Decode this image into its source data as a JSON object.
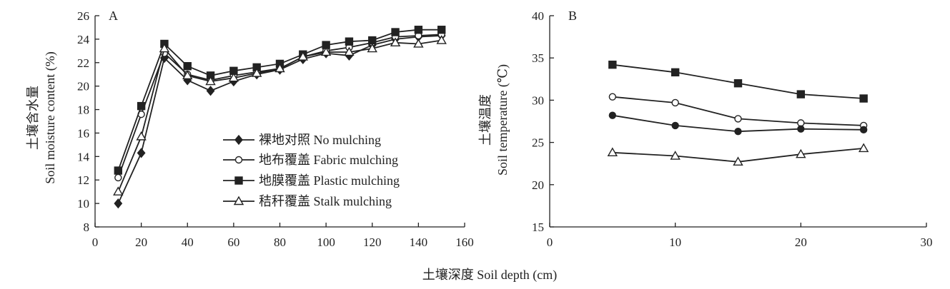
{
  "figure": {
    "shared_xlabel": "土壤深度 Soil depth (cm)"
  },
  "chart_data": [
    {
      "type": "line",
      "panel_label": "A",
      "ylabel_cn": "土壤含水量",
      "ylabel_en": "Soil moisture content (%)",
      "xlim": [
        0,
        160
      ],
      "ylim": [
        8,
        26
      ],
      "xticks": [
        0,
        20,
        40,
        60,
        80,
        100,
        120,
        140,
        160
      ],
      "yticks": [
        8,
        10,
        12,
        14,
        16,
        18,
        20,
        22,
        24,
        26
      ],
      "grid": false,
      "legend_position": "bottom-right",
      "x": [
        10,
        20,
        30,
        40,
        50,
        60,
        70,
        80,
        90,
        100,
        110,
        120,
        130,
        140,
        150
      ],
      "series": [
        {
          "name": "裸地对照 No mulching",
          "marker": "diamond-filled",
          "values": [
            10.0,
            14.3,
            22.4,
            20.5,
            19.6,
            20.4,
            21.0,
            21.4,
            22.3,
            22.8,
            22.6,
            23.5,
            24.0,
            24.2,
            24.3
          ]
        },
        {
          "name": "地布覆盖 Fabric mulching",
          "marker": "circle-open",
          "values": [
            12.2,
            17.6,
            22.8,
            21.0,
            20.5,
            20.9,
            21.2,
            21.5,
            22.5,
            23.0,
            23.3,
            23.7,
            24.2,
            24.3,
            24.4
          ]
        },
        {
          "name": "地膜覆盖 Plastic mulching",
          "marker": "square-filled",
          "values": [
            12.8,
            18.3,
            23.6,
            21.7,
            20.9,
            21.3,
            21.6,
            21.9,
            22.7,
            23.5,
            23.8,
            23.9,
            24.6,
            24.8,
            24.8
          ]
        },
        {
          "name": "秸秆覆盖 Stalk mulching",
          "marker": "triangle-open",
          "values": [
            11.0,
            15.7,
            23.2,
            20.9,
            20.4,
            20.7,
            21.1,
            21.5,
            22.5,
            22.9,
            22.9,
            23.2,
            23.7,
            23.6,
            23.9
          ]
        }
      ]
    },
    {
      "type": "line",
      "panel_label": "B",
      "ylabel_cn": "土壤温度",
      "ylabel_en": "Soil temperature (℃)",
      "xlim": [
        0,
        30
      ],
      "ylim": [
        15,
        40
      ],
      "xticks": [
        0,
        10,
        20,
        30
      ],
      "yticks": [
        15,
        20,
        25,
        30,
        35,
        40
      ],
      "grid": false,
      "x": [
        5,
        10,
        15,
        20,
        25
      ],
      "series": [
        {
          "marker": "square-filled",
          "values": [
            34.2,
            33.3,
            32.0,
            30.7,
            30.2
          ]
        },
        {
          "marker": "circle-open",
          "values": [
            30.4,
            29.7,
            27.8,
            27.3,
            27.0
          ]
        },
        {
          "marker": "circle-filled",
          "values": [
            28.2,
            27.0,
            26.3,
            26.6,
            26.5
          ]
        },
        {
          "marker": "triangle-open",
          "values": [
            23.8,
            23.4,
            22.7,
            23.6,
            24.3
          ]
        }
      ]
    }
  ]
}
